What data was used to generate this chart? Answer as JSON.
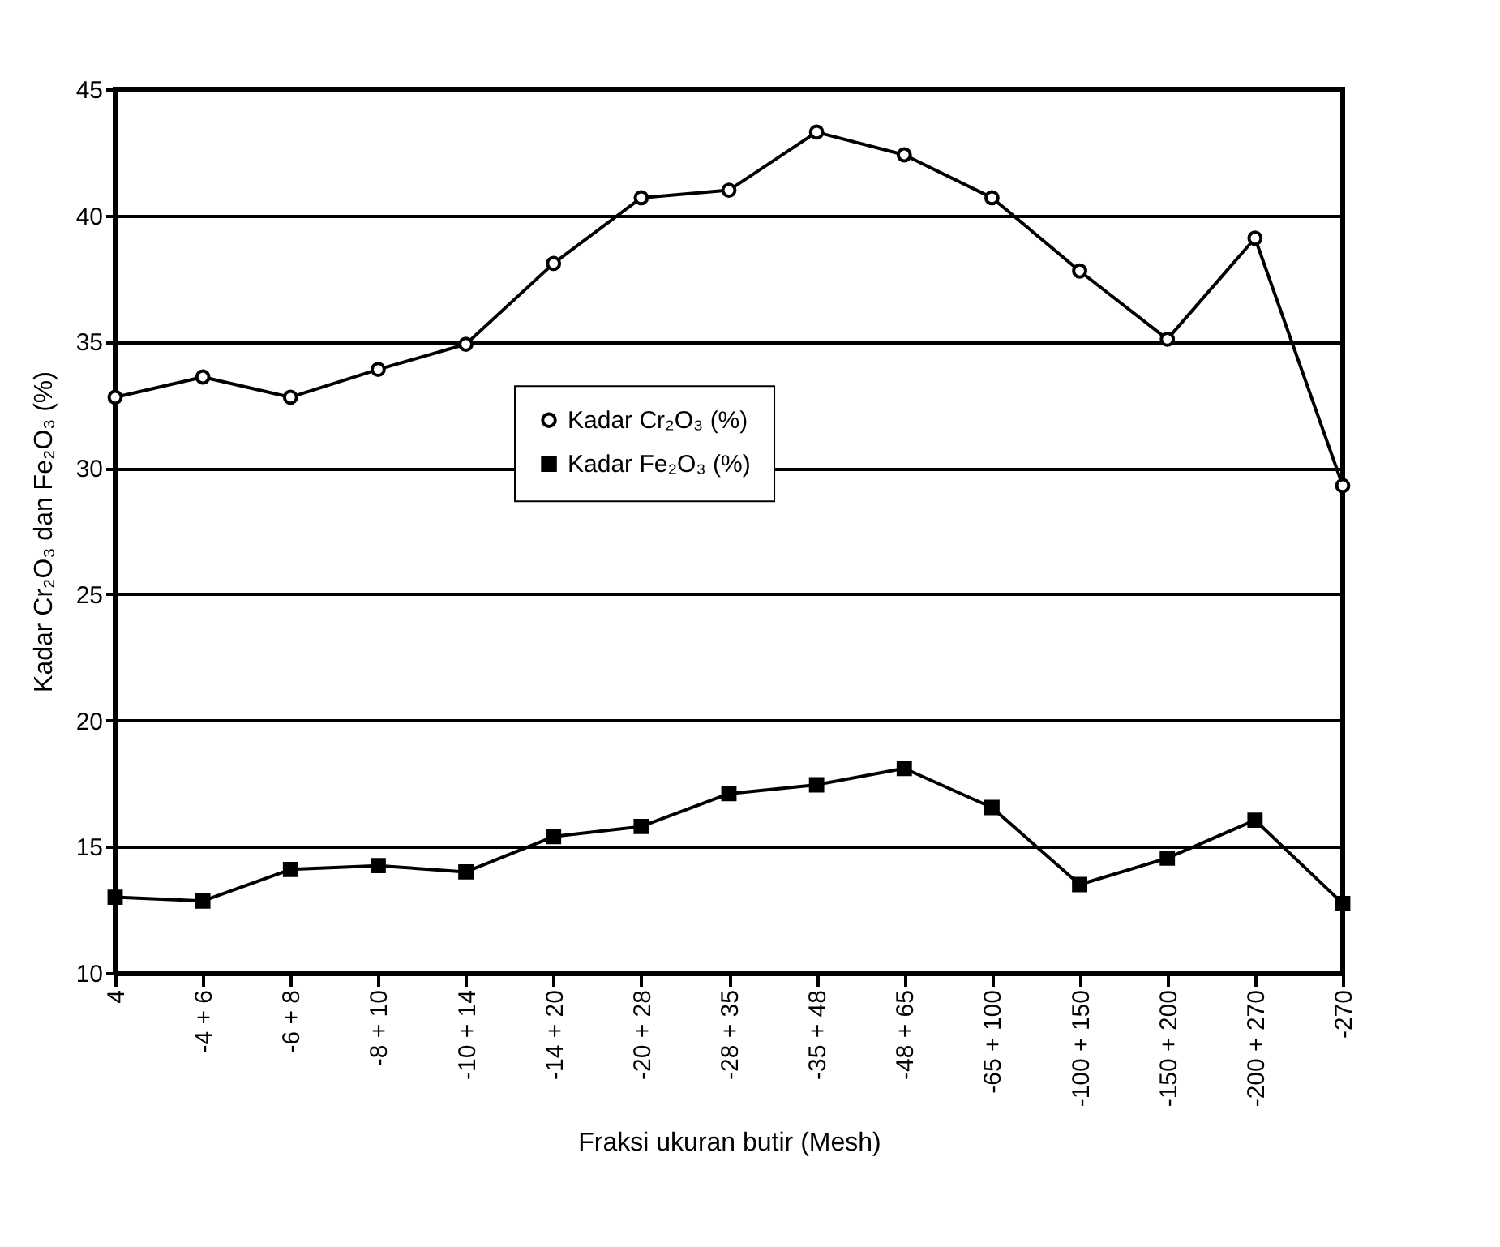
{
  "chart_data": {
    "type": "line",
    "xlabel": "Fraksi ukuran butir (Mesh)",
    "ylabel": "Kadar  Cr₂O₃ dan Fe₂O₃ (%)",
    "categories": [
      "4",
      "-4 + 6",
      "-6 + 8",
      "-8 + 10",
      "-10 + 14",
      "-14 + 20",
      "-20 + 28",
      "-28 + 35",
      "-35 + 48",
      "-48 + 65",
      "-65 + 100",
      "-100 + 150",
      "-150 + 200",
      "-200 + 270",
      "-270"
    ],
    "series": [
      {
        "name": "Kadar Cr₂O₃ (%)",
        "color": "#000000",
        "marker": "circle",
        "values": [
          32.8,
          33.6,
          32.8,
          33.9,
          34.9,
          38.1,
          40.7,
          41.0,
          43.3,
          42.4,
          40.7,
          37.8,
          35.1,
          39.1,
          29.3
        ]
      },
      {
        "name": "Kadar Fe₂O₃ (%)",
        "color": "#000000",
        "marker": "square",
        "values": [
          13.0,
          12.85,
          14.1,
          14.25,
          14.0,
          15.4,
          15.8,
          17.1,
          17.45,
          18.1,
          16.55,
          13.5,
          14.55,
          16.05,
          12.75
        ]
      }
    ],
    "ylim": [
      10,
      45
    ],
    "yticks": [
      10,
      15,
      20,
      25,
      30,
      35,
      40,
      45
    ],
    "grid": "y",
    "legend": "center",
    "line_style": "solid"
  }
}
